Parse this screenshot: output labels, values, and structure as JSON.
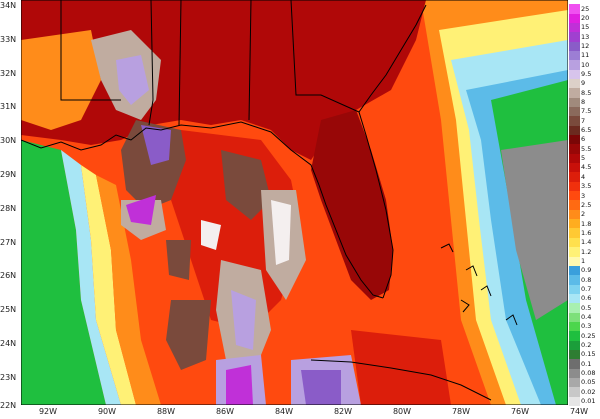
{
  "latitude_labels": [
    "34N",
    "33N",
    "32N",
    "31N",
    "30N",
    "29N",
    "28N",
    "27N",
    "26N",
    "25N",
    "24N",
    "23N",
    "22N"
  ],
  "longitude_labels": [
    "92W",
    "90W",
    "88W",
    "86W",
    "84W",
    "82W",
    "80W",
    "78W",
    "76W",
    "74W"
  ],
  "colorbar": {
    "labels": [
      "0.01",
      "0.02",
      "0.05",
      "0.08",
      "0.1",
      "0.15",
      "0.2",
      "0.25",
      "0.3",
      "0.4",
      "0.5",
      "0.6",
      "0.7",
      "0.8",
      "0.9",
      "1",
      "1.2",
      "1.4",
      "1.6",
      "1.8",
      "2",
      "2.5",
      "3",
      "3.5",
      "4",
      "4.5",
      "5",
      "5.5",
      "6",
      "6.5",
      "7",
      "7.5",
      "8",
      "8.5",
      "9",
      "9.5",
      "10",
      "11",
      "12",
      "13",
      "15",
      "20",
      "25"
    ],
    "colors": [
      "#e6e6e6",
      "#c8c8c8",
      "#a8a8a8",
      "#8c8c8c",
      "#6e6e6e",
      "#2e7d32",
      "#1b9e3a",
      "#1fbf3f",
      "#4cd64c",
      "#7de07a",
      "#a8f0b0",
      "#a8e6f5",
      "#7fd3f0",
      "#5cbbe8",
      "#3a9fdc",
      "#fff9b0",
      "#fff176",
      "#ffe04d",
      "#ffc933",
      "#ffad1f",
      "#ff8c1a",
      "#ff6a12",
      "#ff4a0f",
      "#f0300d",
      "#dc1e0b",
      "#c8100a",
      "#b00808",
      "#980707",
      "#7a0606",
      "#6b2a1f",
      "#7a4a3c",
      "#8a6a5c",
      "#a08a7c",
      "#c0aca0",
      "#dcd0c8",
      "#d7c4ec",
      "#b8a0e0",
      "#9c7ed4",
      "#8a5cc8",
      "#a040d0",
      "#c030d8",
      "#e020e0",
      "#f050f0"
    ]
  },
  "map": {
    "ocean_base_color": "#ff4a0f",
    "land_base_color": "#c8100a",
    "field_colors": {
      "deep_red": "#b00808",
      "dark_red": "#980707",
      "red": "#dc1e0b",
      "orange": "#ff8c1a",
      "yellow": "#fff176",
      "light_blue": "#a8e6f5",
      "blue": "#5cbbe8",
      "green": "#1fbf3f",
      "light_green": "#7de07a",
      "gray": "#8c8c8c",
      "brown": "#7a4a3c",
      "tan": "#c0aca0",
      "lavender": "#b8a0e0",
      "purple": "#8a5cc8",
      "magenta": "#c030d8",
      "white": "#f4efef"
    }
  }
}
